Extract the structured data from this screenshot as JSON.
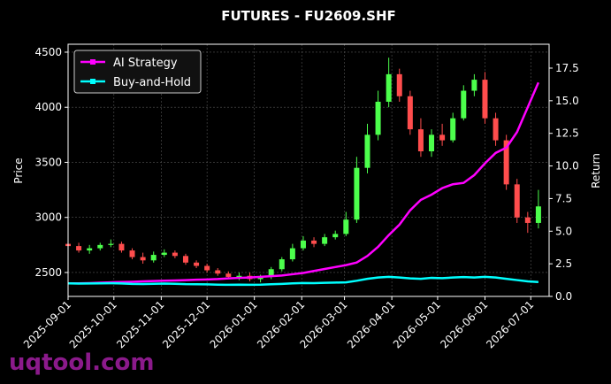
{
  "chart_data": {
    "type": "candlestick",
    "title": "FUTURES - FU2609.SHF",
    "y_label": "Price",
    "y2_label": "Return",
    "watermark": "uqtool.com",
    "grid": true,
    "legend_position": "upper left",
    "up_color": "#4cff4c",
    "down_color": "#ff4d4d",
    "x": [
      "2025-09-01",
      "2025-09-08",
      "2025-09-15",
      "2025-09-22",
      "2025-09-29",
      "2025-10-06",
      "2025-10-13",
      "2025-10-20",
      "2025-10-27",
      "2025-11-03",
      "2025-11-10",
      "2025-11-17",
      "2025-11-24",
      "2025-12-01",
      "2025-12-08",
      "2025-12-15",
      "2025-12-22",
      "2025-12-29",
      "2026-01-05",
      "2026-01-12",
      "2026-01-19",
      "2026-01-26",
      "2026-02-02",
      "2026-02-09",
      "2026-02-16",
      "2026-02-23",
      "2026-03-02",
      "2026-03-09",
      "2026-03-16",
      "2026-03-23",
      "2026-03-30",
      "2026-04-06",
      "2026-04-13",
      "2026-04-20",
      "2026-04-27",
      "2026-05-04",
      "2026-05-11",
      "2026-05-18",
      "2026-05-25",
      "2026-06-01",
      "2026-06-08",
      "2026-06-15",
      "2026-06-22",
      "2026-06-29",
      "2026-07-06"
    ],
    "open": [
      2760,
      2740,
      2700,
      2720,
      2750,
      2760,
      2700,
      2640,
      2610,
      2660,
      2680,
      2650,
      2590,
      2560,
      2520,
      2490,
      2460,
      2470,
      2440,
      2460,
      2530,
      2620,
      2720,
      2790,
      2760,
      2820,
      2850,
      2980,
      3450,
      3750,
      4050,
      4300,
      4100,
      3800,
      3600,
      3750,
      3700,
      3900,
      4150,
      4250,
      3900,
      3700,
      3300,
      3000,
      2950
    ],
    "high": [
      2790,
      2770,
      2750,
      2770,
      2800,
      2780,
      2720,
      2680,
      2690,
      2710,
      2700,
      2670,
      2610,
      2580,
      2540,
      2510,
      2500,
      2500,
      2480,
      2550,
      2640,
      2760,
      2830,
      2820,
      2850,
      2880,
      3050,
      3550,
      3850,
      4150,
      4450,
      4350,
      4150,
      3900,
      3800,
      3850,
      3950,
      4200,
      4300,
      4320,
      3950,
      3750,
      3350,
      3050,
      3250
    ],
    "low": [
      2710,
      2680,
      2670,
      2700,
      2730,
      2680,
      2620,
      2580,
      2590,
      2640,
      2630,
      2570,
      2540,
      2500,
      2470,
      2440,
      2430,
      2420,
      2410,
      2440,
      2510,
      2600,
      2700,
      2730,
      2740,
      2800,
      2830,
      2950,
      3400,
      3700,
      4000,
      4050,
      3750,
      3550,
      3550,
      3650,
      3680,
      3880,
      4100,
      3850,
      3650,
      3250,
      2950,
      2860,
      2900
    ],
    "close": [
      2740,
      2700,
      2720,
      2750,
      2760,
      2700,
      2640,
      2610,
      2660,
      2680,
      2650,
      2590,
      2560,
      2520,
      2490,
      2460,
      2470,
      2440,
      2460,
      2530,
      2620,
      2720,
      2790,
      2760,
      2820,
      2850,
      2980,
      3450,
      3750,
      4050,
      4300,
      4100,
      3800,
      3600,
      3750,
      3700,
      3900,
      4150,
      4250,
      3900,
      3700,
      3300,
      3000,
      2950,
      3100
    ],
    "series": [
      {
        "name": "AI Strategy",
        "color": "#ff00ff",
        "axis": "y2",
        "values": [
          1.0,
          1.0,
          1.02,
          1.05,
          1.08,
          1.1,
          1.12,
          1.15,
          1.18,
          1.2,
          1.22,
          1.25,
          1.28,
          1.3,
          1.33,
          1.38,
          1.42,
          1.45,
          1.5,
          1.55,
          1.6,
          1.7,
          1.8,
          1.95,
          2.1,
          2.25,
          2.4,
          2.6,
          3.1,
          3.8,
          4.7,
          5.5,
          6.6,
          7.4,
          7.8,
          8.3,
          8.6,
          8.7,
          9.3,
          10.2,
          11.0,
          11.4,
          12.6,
          14.5,
          16.4
        ]
      },
      {
        "name": "Buy-and-Hold",
        "color": "#00ffff",
        "axis": "y2",
        "values": [
          1.0,
          0.98,
          0.99,
          1.0,
          1.01,
          0.99,
          0.96,
          0.95,
          0.97,
          0.98,
          0.97,
          0.94,
          0.93,
          0.92,
          0.9,
          0.89,
          0.9,
          0.89,
          0.9,
          0.93,
          0.96,
          1.0,
          1.03,
          1.02,
          1.04,
          1.06,
          1.08,
          1.2,
          1.35,
          1.45,
          1.5,
          1.45,
          1.38,
          1.35,
          1.42,
          1.4,
          1.45,
          1.48,
          1.45,
          1.5,
          1.45,
          1.35,
          1.25,
          1.15,
          1.1
        ]
      }
    ],
    "xlim": [
      "2025-09-01",
      "2026-07-13"
    ],
    "xticks": [
      "2025-09-01",
      "2025-10-01",
      "2025-11-01",
      "2025-12-01",
      "2026-01-01",
      "2026-02-01",
      "2026-03-01",
      "2026-04-01",
      "2026-05-01",
      "2026-06-01",
      "2026-07-01"
    ],
    "ylim": [
      2283,
      4572
    ],
    "yticks": [
      2500,
      3000,
      3500,
      4000,
      4500
    ],
    "y2lim": [
      0,
      19.33
    ],
    "y2ticks": [
      {
        "value": 0,
        "label": "0.0"
      },
      {
        "value": 2.5,
        "label": "2.5"
      },
      {
        "value": 5,
        "label": "5.0"
      },
      {
        "value": 7.5,
        "label": "7.5"
      },
      {
        "value": 10,
        "label": "10.0"
      },
      {
        "value": 12.5,
        "label": "12.5"
      },
      {
        "value": 15,
        "label": "15.0"
      },
      {
        "value": 17.5,
        "label": "17.5"
      }
    ]
  }
}
